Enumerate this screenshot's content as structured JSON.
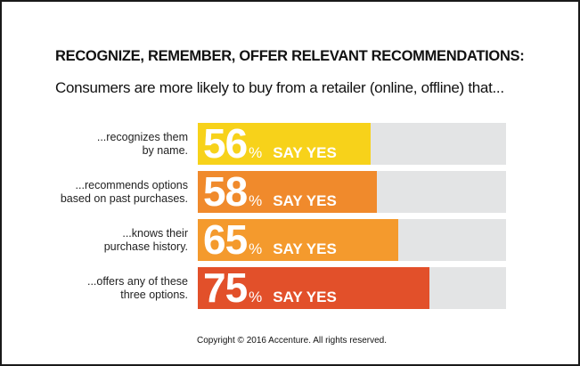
{
  "title": "RECOGNIZE, REMEMBER, OFFER RELEVANT RECOMMENDATIONS:",
  "subtitle": "Consumers are more likely to buy from a retailer (online, offline) that...",
  "footer": "Copyright © 2016 Accenture. All rights reserved.",
  "chart_data": {
    "type": "bar",
    "orientation": "horizontal",
    "ylim": [
      0,
      100
    ],
    "categories": [
      "...recognizes them by name.",
      "...recommends options based on past purchases.",
      "...knows their purchase history.",
      "...offers any of these three options."
    ],
    "label_lines": [
      [
        "...recognizes them",
        "by name."
      ],
      [
        "...recommends options",
        "based on past purchases."
      ],
      [
        "...knows their",
        "purchase history."
      ],
      [
        "...offers any of these",
        "three options."
      ]
    ],
    "values": [
      56,
      58,
      65,
      75
    ],
    "value_labels": [
      "56",
      "58",
      "65",
      "75"
    ],
    "unit": "%",
    "suffix": "SAY YES",
    "colors": [
      "#f7d21a",
      "#f08a2c",
      "#f49a2d",
      "#e2502a"
    ],
    "track_color": "#e3e4e5"
  }
}
